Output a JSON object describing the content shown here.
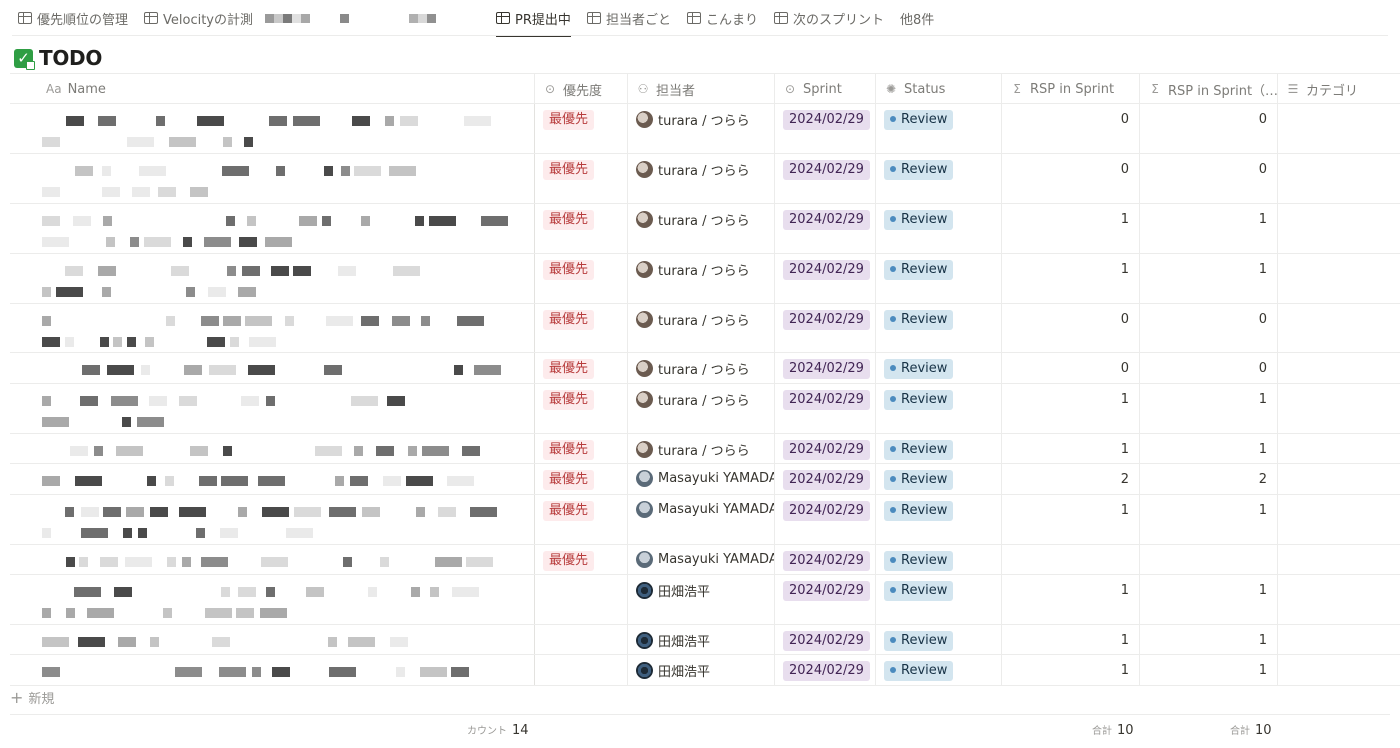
{
  "tabs": [
    {
      "label": "優先順位の管理",
      "active": false
    },
    {
      "label": "Velocityの計測",
      "active": false
    },
    {
      "label": "PR提出中",
      "active": true
    },
    {
      "label": "担当者ごと",
      "active": false
    },
    {
      "label": "こんまり",
      "active": false
    },
    {
      "label": "次のスプリント",
      "active": false
    }
  ],
  "more_tabs": "他8件",
  "database": {
    "title": "TODO",
    "icon": "checkbox-icon"
  },
  "columns": [
    {
      "label": "Name",
      "icon_text": "Aa",
      "icon": "text-icon"
    },
    {
      "label": "優先度",
      "icon": "select-icon"
    },
    {
      "label": "担当者",
      "icon": "people-icon"
    },
    {
      "label": "Sprint",
      "icon": "select-icon"
    },
    {
      "label": "Status",
      "icon": "status-icon"
    },
    {
      "label": "RSP in Sprint",
      "icon": "formula-icon"
    },
    {
      "label": "RSP in Sprint（…",
      "icon": "formula-icon"
    },
    {
      "label": "カテゴリ",
      "icon": "list-icon"
    }
  ],
  "rows": [
    {
      "priority": "最優先",
      "assignee": "turara / つらら",
      "avatar": "a1",
      "sprint": "2024/02/29",
      "status": "Review",
      "rsp": "0",
      "rsp2": "0"
    },
    {
      "priority": "最優先",
      "assignee": "turara / つらら",
      "avatar": "a1",
      "sprint": "2024/02/29",
      "status": "Review",
      "rsp": "0",
      "rsp2": "0"
    },
    {
      "priority": "最優先",
      "assignee": "turara / つらら",
      "avatar": "a1",
      "sprint": "2024/02/29",
      "status": "Review",
      "rsp": "1",
      "rsp2": "1"
    },
    {
      "priority": "最優先",
      "assignee": "turara / つらら",
      "avatar": "a1",
      "sprint": "2024/02/29",
      "status": "Review",
      "rsp": "1",
      "rsp2": "1"
    },
    {
      "priority": "最優先",
      "assignee": "turara / つらら",
      "avatar": "a1",
      "sprint": "2024/02/29",
      "status": "Review",
      "rsp": "0",
      "rsp2": "0"
    },
    {
      "priority": "最優先",
      "assignee": "turara / つらら",
      "avatar": "a1",
      "sprint": "2024/02/29",
      "status": "Review",
      "rsp": "0",
      "rsp2": "0"
    },
    {
      "priority": "最優先",
      "assignee": "turara / つらら",
      "avatar": "a1",
      "sprint": "2024/02/29",
      "status": "Review",
      "rsp": "1",
      "rsp2": "1"
    },
    {
      "priority": "最優先",
      "assignee": "turara / つらら",
      "avatar": "a1",
      "sprint": "2024/02/29",
      "status": "Review",
      "rsp": "1",
      "rsp2": "1"
    },
    {
      "priority": "最優先",
      "assignee": "Masayuki YAMADA",
      "avatar": "a2",
      "sprint": "2024/02/29",
      "status": "Review",
      "rsp": "2",
      "rsp2": "2"
    },
    {
      "priority": "最優先",
      "assignee": "Masayuki YAMADA",
      "avatar": "a2",
      "sprint": "2024/02/29",
      "status": "Review",
      "rsp": "1",
      "rsp2": "1"
    },
    {
      "priority": "最優先",
      "assignee": "Masayuki YAMADA",
      "avatar": "a2",
      "sprint": "2024/02/29",
      "status": "Review",
      "rsp": "",
      "rsp2": ""
    },
    {
      "priority": "",
      "assignee": "田畑浩平",
      "avatar": "a3",
      "sprint": "2024/02/29",
      "status": "Review",
      "rsp": "1",
      "rsp2": "1"
    },
    {
      "priority": "",
      "assignee": "田畑浩平",
      "avatar": "a3",
      "sprint": "2024/02/29",
      "status": "Review",
      "rsp": "1",
      "rsp2": "1"
    },
    {
      "priority": "",
      "assignee": "田畑浩平",
      "avatar": "a3",
      "sprint": "2024/02/29",
      "status": "Review",
      "rsp": "1",
      "rsp2": "1"
    }
  ],
  "add_row_label": "新規",
  "footer": {
    "count_label": "カウント",
    "count_value": "14",
    "sum_label": "合計",
    "sum_rsp": "10",
    "sum_rsp2": "10"
  },
  "colors": {
    "priority_bg": "#fdebec",
    "sprint_bg": "#e8deee",
    "status_bg": "#d3e5ef",
    "status_dot": "#4b8bbe"
  }
}
